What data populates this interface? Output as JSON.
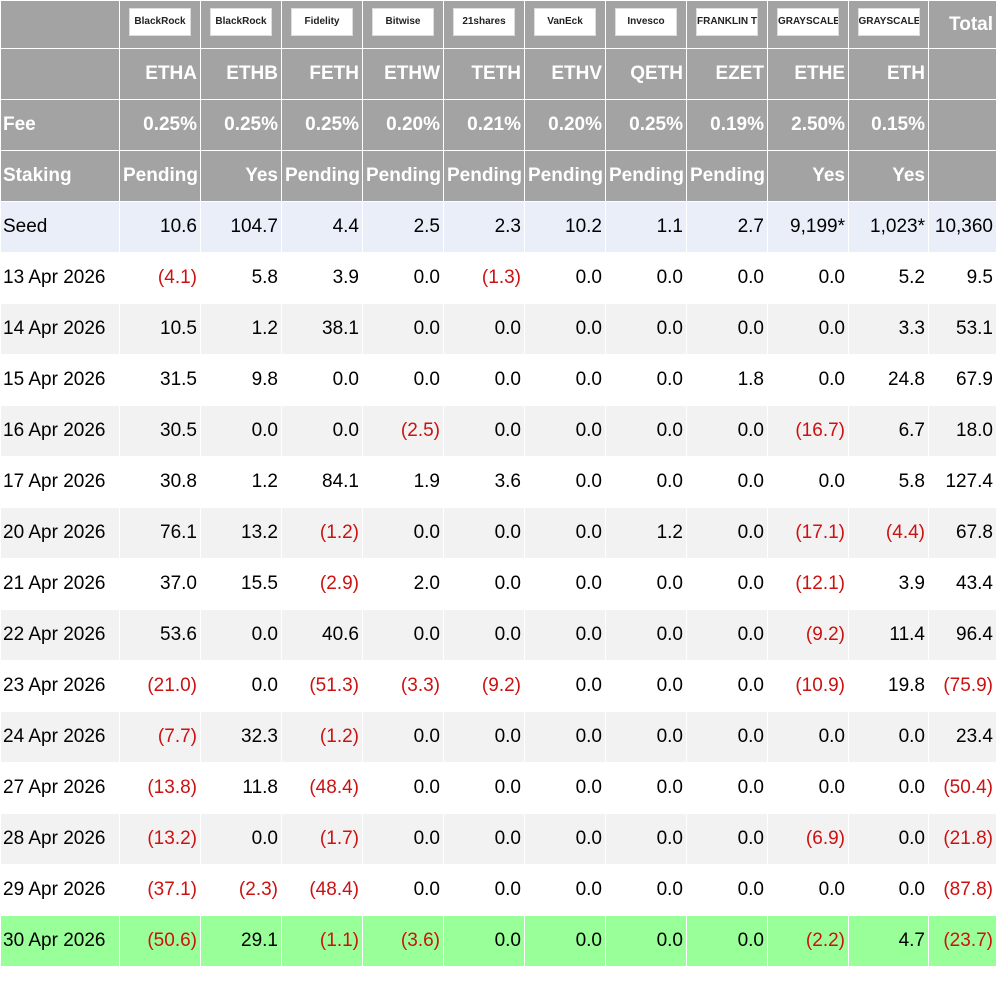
{
  "table": {
    "logos": [
      "BlackRock",
      "BlackRock",
      "Fidelity",
      "Bitwise",
      "21shares",
      "VanEck",
      "Invesco",
      "FRANKLIN TEMPLETON",
      "GRAYSCALE",
      "GRAYSCALE"
    ],
    "total": "Total",
    "tickers": [
      "ETHA",
      "ETHB",
      "FETH",
      "ETHW",
      "TETH",
      "ETHV",
      "QETH",
      "EZET",
      "ETHE",
      "ETH"
    ],
    "fee": {
      "label": "Fee",
      "values": [
        "0.25%",
        "0.25%",
        "0.25%",
        "0.20%",
        "0.21%",
        "0.20%",
        "0.25%",
        "0.19%",
        "2.50%",
        "0.15%"
      ]
    },
    "staking": {
      "label": "Staking",
      "values": [
        "Pending",
        "Yes",
        "Pending",
        "Pending",
        "Pending",
        "Pending",
        "Pending",
        "Pending",
        "Yes",
        "Yes"
      ]
    },
    "rows": [
      [
        "Seed",
        "10.6",
        "104.7",
        "4.4",
        "2.5",
        "2.3",
        "10.2",
        "1.1",
        "2.7",
        "9,199*",
        "1,023*",
        "10,360"
      ],
      [
        "13 Apr 2026",
        "(4.1)",
        "5.8",
        "3.9",
        "0.0",
        "(1.3)",
        "0.0",
        "0.0",
        "0.0",
        "0.0",
        "5.2",
        "9.5"
      ],
      [
        "14 Apr 2026",
        "10.5",
        "1.2",
        "38.1",
        "0.0",
        "0.0",
        "0.0",
        "0.0",
        "0.0",
        "0.0",
        "3.3",
        "53.1"
      ],
      [
        "15 Apr 2026",
        "31.5",
        "9.8",
        "0.0",
        "0.0",
        "0.0",
        "0.0",
        "0.0",
        "1.8",
        "0.0",
        "24.8",
        "67.9"
      ],
      [
        "16 Apr 2026",
        "30.5",
        "0.0",
        "0.0",
        "(2.5)",
        "0.0",
        "0.0",
        "0.0",
        "0.0",
        "(16.7)",
        "6.7",
        "18.0"
      ],
      [
        "17 Apr 2026",
        "30.8",
        "1.2",
        "84.1",
        "1.9",
        "3.6",
        "0.0",
        "0.0",
        "0.0",
        "0.0",
        "5.8",
        "127.4"
      ],
      [
        "20 Apr 2026",
        "76.1",
        "13.2",
        "(1.2)",
        "0.0",
        "0.0",
        "0.0",
        "1.2",
        "0.0",
        "(17.1)",
        "(4.4)",
        "67.8"
      ],
      [
        "21 Apr 2026",
        "37.0",
        "15.5",
        "(2.9)",
        "2.0",
        "0.0",
        "0.0",
        "0.0",
        "0.0",
        "(12.1)",
        "3.9",
        "43.4"
      ],
      [
        "22 Apr 2026",
        "53.6",
        "0.0",
        "40.6",
        "0.0",
        "0.0",
        "0.0",
        "0.0",
        "0.0",
        "(9.2)",
        "11.4",
        "96.4"
      ],
      [
        "23 Apr 2026",
        "(21.0)",
        "0.0",
        "(51.3)",
        "(3.3)",
        "(9.2)",
        "0.0",
        "0.0",
        "0.0",
        "(10.9)",
        "19.8",
        "(75.9)"
      ],
      [
        "24 Apr 2026",
        "(7.7)",
        "32.3",
        "(1.2)",
        "0.0",
        "0.0",
        "0.0",
        "0.0",
        "0.0",
        "0.0",
        "0.0",
        "23.4"
      ],
      [
        "27 Apr 2026",
        "(13.8)",
        "11.8",
        "(48.4)",
        "0.0",
        "0.0",
        "0.0",
        "0.0",
        "0.0",
        "0.0",
        "0.0",
        "(50.4)"
      ],
      [
        "28 Apr 2026",
        "(13.2)",
        "0.0",
        "(1.7)",
        "0.0",
        "0.0",
        "0.0",
        "0.0",
        "0.0",
        "(6.9)",
        "0.0",
        "(21.8)"
      ],
      [
        "29 Apr 2026",
        "(37.1)",
        "(2.3)",
        "(48.4)",
        "0.0",
        "0.0",
        "0.0",
        "0.0",
        "0.0",
        "0.0",
        "0.0",
        "(87.8)"
      ],
      [
        "30 Apr 2026",
        "(50.6)",
        "29.1",
        "(1.1)",
        "(3.6)",
        "0.0",
        "0.0",
        "0.0",
        "0.0",
        "(2.2)",
        "4.7",
        "(23.7)"
      ]
    ]
  }
}
